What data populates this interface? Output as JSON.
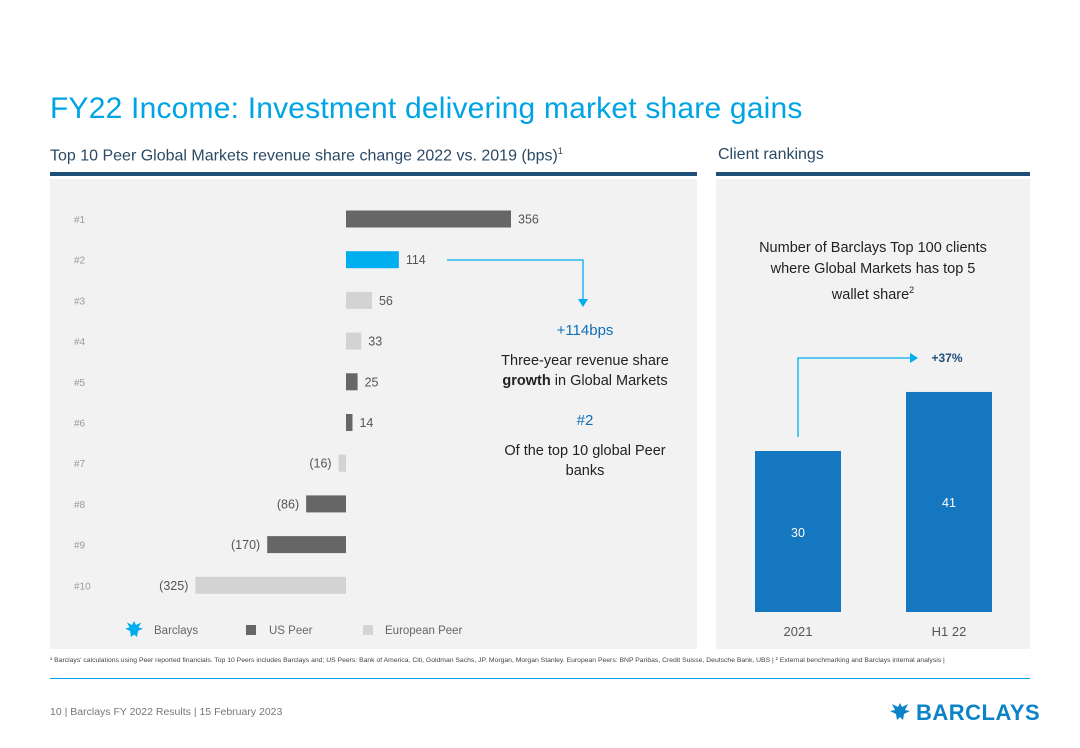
{
  "page": {
    "title": "FY22 Income: Investment delivering market share gains",
    "left_subtitle": "Top 10 Peer Global Markets revenue share change 2022 vs. 2019 (bps)",
    "left_subtitle_sup": "1",
    "right_subtitle": "Client rankings"
  },
  "colors": {
    "accent": "#00a4e4",
    "navy": "#1f4e79",
    "barclays": "#00aeef",
    "us_peer": "#666666",
    "european_peer": "#d3d3d3",
    "right_bar": "#1577c0"
  },
  "chart_data": [
    {
      "type": "bar",
      "orientation": "horizontal",
      "title": "Top 10 Peer Global Markets revenue share change 2022 vs. 2019 (bps)",
      "categories": [
        "#1",
        "#2",
        "#3",
        "#4",
        "#5",
        "#6",
        "#7",
        "#8",
        "#9",
        "#10"
      ],
      "values": [
        356,
        114,
        56,
        33,
        25,
        14,
        -16,
        -86,
        -170,
        -325
      ],
      "labels": [
        "356",
        "114",
        "56",
        "33",
        "25",
        "14",
        "(16)",
        "(86)",
        "(170)",
        "(325)"
      ],
      "groups": [
        "US Peer",
        "Barclays",
        "European Peer",
        "European Peer",
        "US Peer",
        "US Peer",
        "European Peer",
        "US Peer",
        "US Peer",
        "European Peer"
      ],
      "legend": [
        {
          "name": "Barclays",
          "icon": "eagle-icon"
        },
        {
          "name": "US Peer",
          "icon": "square"
        },
        {
          "name": "European Peer",
          "icon": "square"
        }
      ],
      "xlim": [
        -400,
        400
      ],
      "legend_position": "bottom"
    },
    {
      "type": "bar",
      "title": "Number of Barclays Top 100 clients where Global Markets has top 5 wallet share",
      "categories": [
        "2021",
        "H1 22"
      ],
      "values": [
        30,
        41
      ],
      "labels": [
        "30",
        "41"
      ],
      "annotation": "+37%",
      "ylim": [
        0,
        50
      ]
    }
  ],
  "callout": {
    "bps": "+114bps",
    "line1": "Three-year revenue share",
    "line2_bold": "growth",
    "line2_rest": " in Global Markets",
    "rank": "#2",
    "rank_line1": "Of the top 10 global Peer",
    "rank_line2": "banks"
  },
  "right_text": {
    "line1": "Number of Barclays Top 100 clients",
    "line2": "where Global Markets has top 5",
    "line3": "wallet share",
    "sup": "2"
  },
  "footnote": "¹ Barclays' calculations using Peer reported financials. Top 10 Peers includes Barclays and; US Peers: Bank of America, Citi, Goldman Sachs, JP. Morgan, Morgan Stanley. European Peers: BNP Paribas, Credit Suisse, Deutsche Bank, UBS | ² External benchmarking and Barclays internal analysis |",
  "footer": {
    "page_number": "10",
    "doc": "Barclays FY 2022 Results",
    "date": "15 February 2023",
    "brand": "BARCLAYS"
  }
}
